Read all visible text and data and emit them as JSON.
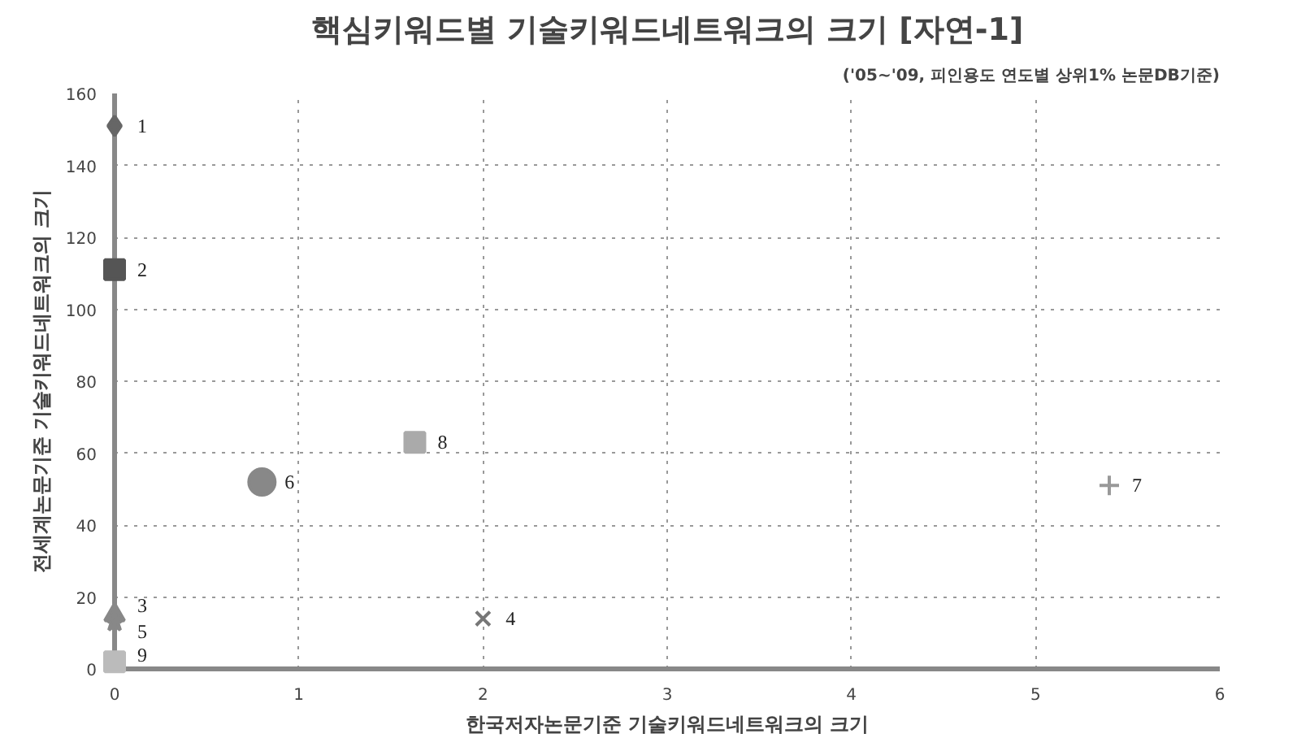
{
  "chart_data": {
    "type": "scatter",
    "title": "핵심키워드별 기술키워드네트워크의 크기 [자연-1]",
    "subtitle": "('05~'09, 피인용도 연도별 상위1% 논문DB기준)",
    "xlabel": "한국저자논문기준 기술키워드네트워크의 크기",
    "ylabel": "전세계논문기준 기술키워드네트워크의 크기",
    "xlim": [
      0,
      6
    ],
    "xticks": [
      0,
      1,
      2,
      3,
      4,
      5,
      6
    ],
    "ylim": [
      0,
      160
    ],
    "yticks": [
      0,
      20,
      40,
      60,
      80,
      100,
      120,
      140,
      160
    ],
    "grid": true,
    "line_style": "dotted",
    "series": [
      {
        "name": "1",
        "color": "#666666",
        "marker": "diamond",
        "x": [
          0
        ],
        "values": [
          151
        ]
      },
      {
        "name": "2",
        "color": "#555555",
        "marker": "square",
        "x": [
          0
        ],
        "values": [
          111
        ]
      },
      {
        "name": "3",
        "color": "#888888",
        "marker": "triangle",
        "x": [
          0
        ],
        "values": [
          15
        ]
      },
      {
        "name": "4",
        "color": "#777777",
        "marker": "x",
        "x": [
          2
        ],
        "values": [
          14
        ]
      },
      {
        "name": "5",
        "color": "#888888",
        "marker": "star",
        "x": [
          0
        ],
        "values": [
          13
        ]
      },
      {
        "name": "6",
        "color": "#888888",
        "marker": "circle",
        "x": [
          0.8
        ],
        "values": [
          52
        ]
      },
      {
        "name": "7",
        "color": "#999999",
        "marker": "cross",
        "x": [
          5.4
        ],
        "values": [
          51
        ]
      },
      {
        "name": "8",
        "color": "#aaaaaa",
        "marker": "square",
        "x": [
          1.63
        ],
        "values": [
          63
        ]
      },
      {
        "name": "9",
        "color": "#bbbbbb",
        "marker": "square",
        "x": [
          0
        ],
        "values": [
          2
        ]
      }
    ]
  }
}
